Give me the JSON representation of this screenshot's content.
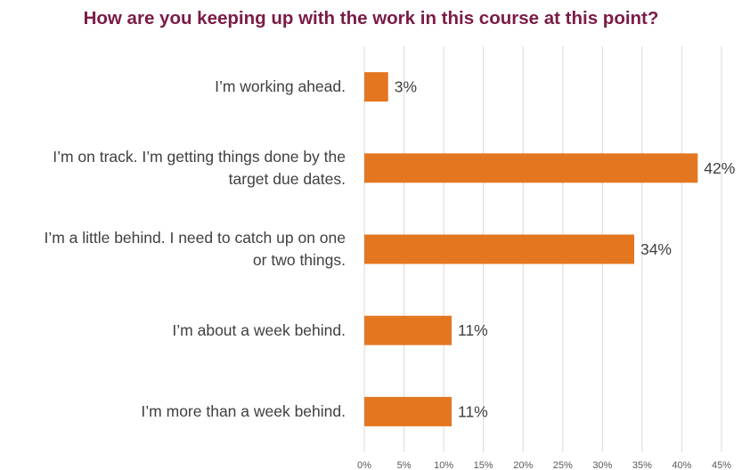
{
  "chart_data": {
    "type": "bar",
    "orientation": "horizontal",
    "title": "How are you keeping up with the work in this course at this point?",
    "categories": [
      "I’m working ahead.",
      "I’m on track. I’m getting things done by the target due dates.",
      "I’m a little behind. I need to catch up on one or two things.",
      "I’m about a week behind.",
      "I’m more than a week behind."
    ],
    "category_lines": [
      [
        "I’m working ahead."
      ],
      [
        "I’m on track. I’m getting things done by the",
        "target due dates."
      ],
      [
        "I’m a little behind. I need to catch up on one",
        "or two things."
      ],
      [
        "I’m about a week behind."
      ],
      [
        "I’m more than a week behind."
      ]
    ],
    "values": [
      3,
      42,
      34,
      11,
      11
    ],
    "data_labels": [
      "3%",
      "42%",
      "34%",
      "11%",
      "11%"
    ],
    "x_ticks": [
      0,
      5,
      10,
      15,
      20,
      25,
      30,
      35,
      40,
      45
    ],
    "x_tick_labels": [
      "0%",
      "5%",
      "10%",
      "15%",
      "20%",
      "25%",
      "30%",
      "35%",
      "40%",
      "45%"
    ],
    "xlim": [
      0,
      45
    ],
    "xlabel": "",
    "ylabel": "",
    "grid": "vertical",
    "legend": "none",
    "colors": {
      "bar": "#E57620",
      "title": "#7B1B47",
      "label_text": "#404040",
      "grid": "#D9D9D9"
    }
  }
}
